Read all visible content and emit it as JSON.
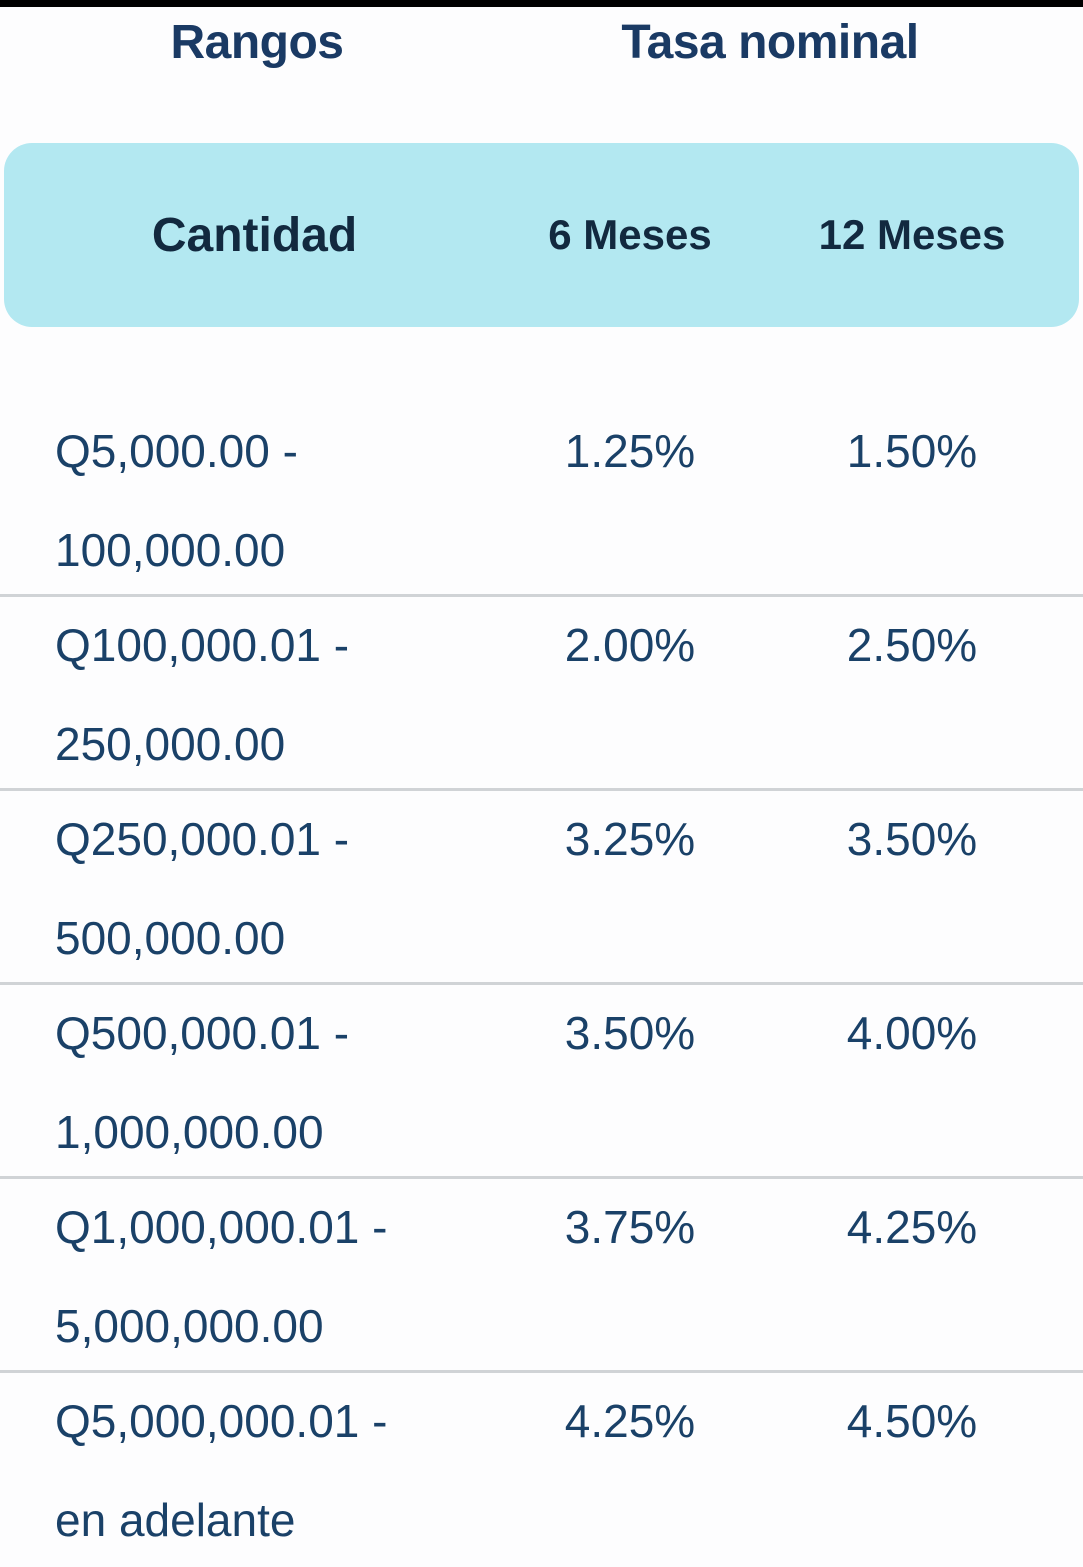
{
  "colors": {
    "top-bar": "#000000",
    "header-navy": "#1a3a64",
    "subheader-navy": "#12293f",
    "body-navy": "#1a4168",
    "band-cyan": "#b3e8f1",
    "divider-gray": "#d0d3d6",
    "page-bg": "#fdfdfe"
  },
  "table": {
    "group_headers": [
      "Rangos",
      "Tasa nominal"
    ],
    "column_headers": [
      "Cantidad",
      "6 Meses",
      "12 Meses"
    ],
    "rows": [
      {
        "range_line1": "Q5,000.00 -",
        "range_line2": "100,000.00",
        "rate_6m": "1.25%",
        "rate_12m": "1.50%"
      },
      {
        "range_line1": "Q100,000.01 -",
        "range_line2": "250,000.00",
        "rate_6m": "2.00%",
        "rate_12m": "2.50%"
      },
      {
        "range_line1": "Q250,000.01 -",
        "range_line2": "500,000.00",
        "rate_6m": "3.25%",
        "rate_12m": "3.50%"
      },
      {
        "range_line1": "Q500,000.01 -",
        "range_line2": "1,000,000.00",
        "rate_6m": "3.50%",
        "rate_12m": "4.00%"
      },
      {
        "range_line1": "Q1,000,000.01 -",
        "range_line2": "5,000,000.00",
        "rate_6m": "3.75%",
        "rate_12m": "4.25%"
      },
      {
        "range_line1": "Q5,000,000.01 -",
        "range_line2": "en adelante",
        "rate_6m": "4.25%",
        "rate_12m": "4.50%"
      }
    ]
  },
  "chart_data": {
    "type": "table",
    "title": "Rangos / Tasa nominal",
    "columns": [
      "Cantidad",
      "6 Meses",
      "12 Meses"
    ],
    "rows": [
      [
        "Q5,000.00 - 100,000.00",
        "1.25%",
        "1.50%"
      ],
      [
        "Q100,000.01 - 250,000.00",
        "2.00%",
        "2.50%"
      ],
      [
        "Q250,000.01 - 500,000.00",
        "3.25%",
        "3.50%"
      ],
      [
        "Q500,000.01 - 1,000,000.00",
        "3.50%",
        "4.00%"
      ],
      [
        "Q1,000,000.01 - 5,000,000.00",
        "3.75%",
        "4.25%"
      ],
      [
        "Q5,000,000.01 - en adelante",
        "4.25%",
        "4.50%"
      ]
    ]
  }
}
